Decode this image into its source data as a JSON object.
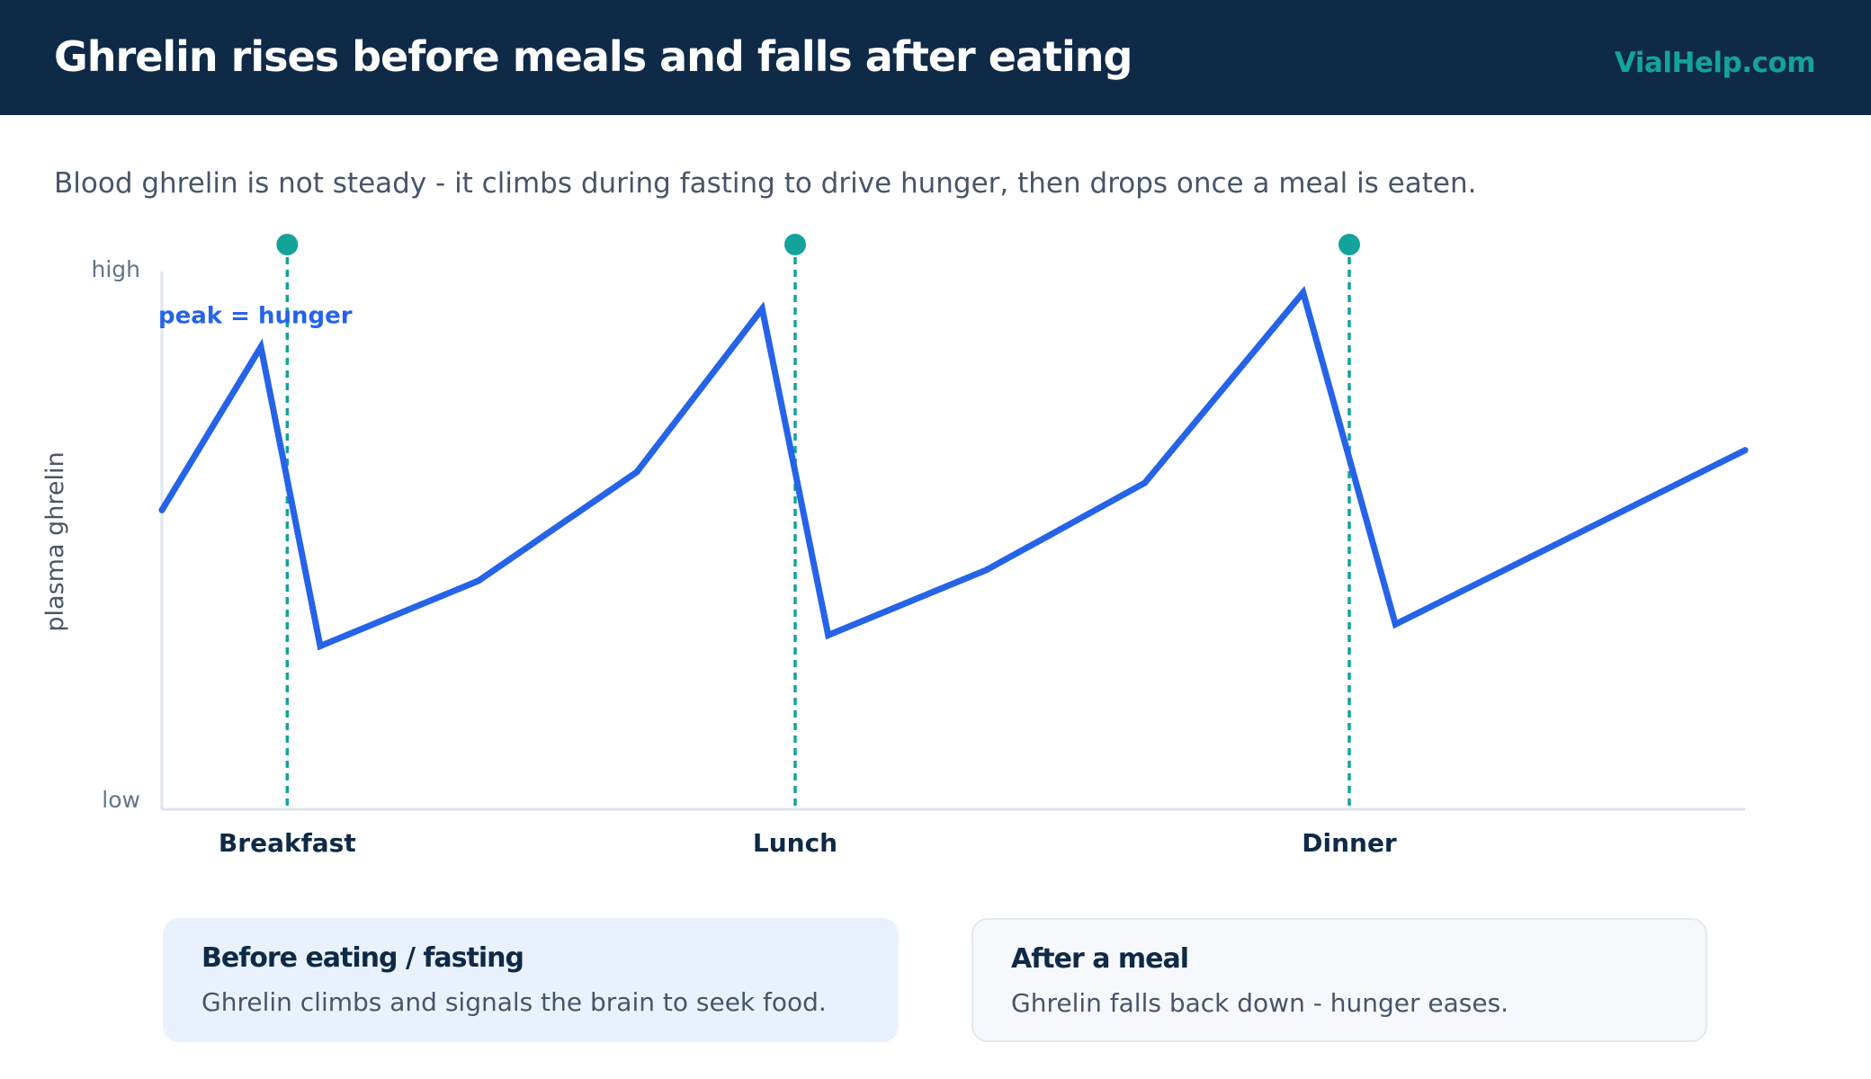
{
  "header": {
    "title": "Ghrelin rises before meals and falls after eating",
    "brand": "VialHelp.com"
  },
  "subtitle": "Blood ghrelin is not steady - it climbs during fasting to drive hunger, then drops once a meal is eaten.",
  "colors": {
    "header_bg": "#0f2a47",
    "accent_teal": "#14a39b",
    "line_blue": "#2563e8"
  },
  "chart_data": {
    "type": "line",
    "title": "",
    "xlabel": "",
    "ylabel": "plasma ghrelin",
    "y_tick_labels": [
      "low",
      "high"
    ],
    "ylim": [
      0,
      100
    ],
    "x_range": [
      0,
      24
    ],
    "grid": false,
    "series": [
      {
        "x": [
          0,
          1.5,
          2.4,
          4.8,
          7.2,
          9.1,
          10.1,
          12.5,
          14.9,
          17.3,
          18.7,
          24
        ],
        "values": [
          55,
          85,
          30,
          42,
          62,
          92,
          32,
          44,
          60,
          95,
          34,
          66
        ]
      }
    ],
    "meals": [
      {
        "label": "Breakfast",
        "x": 1.9
      },
      {
        "label": "Lunch",
        "x": 9.6
      },
      {
        "label": "Dinner",
        "x": 18.0
      }
    ],
    "annotation": {
      "text": "peak = hunger",
      "x": 0,
      "y": 91
    }
  },
  "cards": [
    {
      "title": "Before eating / fasting",
      "text": "Ghrelin climbs and signals the brain to seek food."
    },
    {
      "title": "After a meal",
      "text": "Ghrelin falls back down - hunger eases."
    }
  ]
}
